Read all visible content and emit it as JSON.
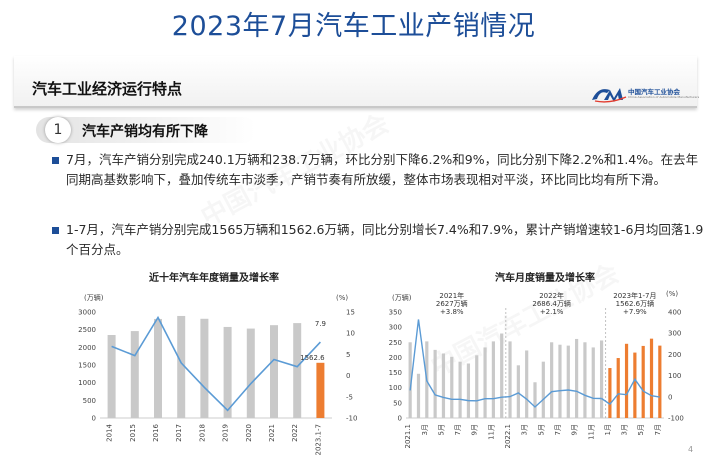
{
  "page": {
    "title": "2023年7月汽车工业产销情况",
    "section_title": "汽车工业经济运行特点",
    "logo_text": "中国汽车工业协会",
    "logo_subtext": "China Association of Automobile Manufacturers",
    "watermark": "中国汽车工业协会",
    "page_number": "4"
  },
  "subsection": {
    "number": "1",
    "title": "汽车产销均有所下降"
  },
  "bullets": [
    {
      "text": "7月，汽车产销分别完成240.1万辆和238.7万辆，环比分别下降6.2%和9%，同比分别下降2.2%和1.4%。在去年同期高基数影响下，叠加传统车市淡季，产销节奏有所放缓，整体市场表现相对平淡，环比同比均有所下滑。"
    },
    {
      "text": "1-7月，汽车产销分别完成1565万辆和1562.6万辆，同比分别增长7.4%和7.9%，累计产销增速较1-6月均回落1.9个百分点。"
    }
  ],
  "colors": {
    "accent": "#1d4e98",
    "bar_grey": "#c9c9c9",
    "bar_orange": "#ed7d31",
    "line_blue": "#5b9bd5"
  },
  "chart_data": [
    {
      "type": "bar",
      "title": "近十年汽车年度销量及增长率",
      "left_unit": "(万辆)",
      "right_unit": "(%)",
      "categories": [
        "2014",
        "2015",
        "2016",
        "2017",
        "2018",
        "2019",
        "2020",
        "2021",
        "2022",
        "2023.1-7"
      ],
      "series": [
        {
          "values": [
            2349,
            2460,
            2803,
            2888,
            2808,
            2577,
            2531,
            2627,
            2686,
            1562.6
          ]
        },
        {
          "values": [
            6.9,
            4.7,
            13.7,
            3.0,
            -2.8,
            -8.2,
            -1.9,
            3.8,
            2.1,
            7.9
          ]
        }
      ],
      "ylim_left": [
        0,
        3000
      ],
      "ylim_right": [
        -10,
        15
      ],
      "left_ticks": [
        "0",
        "500",
        "1000",
        "1500",
        "2000",
        "2500",
        "3000"
      ],
      "right_ticks": [
        "-10",
        "-5",
        "0",
        "5",
        "10",
        "15"
      ],
      "data_labels": [
        "7.9",
        "1562.6"
      ],
      "highlight_last": true
    },
    {
      "type": "bar",
      "title": "汽车月度销量及增长率",
      "left_unit": "(万辆)",
      "right_unit": "(%)",
      "categories": [
        "2021.1",
        "2月",
        "3月",
        "4月",
        "5月",
        "6月",
        "7月",
        "8月",
        "9月",
        "10月",
        "11月",
        "12月",
        "2022.1",
        "2月",
        "3月",
        "4月",
        "5月",
        "6月",
        "7月",
        "8月",
        "9月",
        "10月",
        "11月",
        "12月",
        "1月",
        "2月",
        "3月",
        "4月",
        "5月",
        "6月",
        "7月"
      ],
      "x_tick_labels": [
        "2021.1",
        "3月",
        "5月",
        "7月",
        "9月",
        "11月",
        "2022.1",
        "3月",
        "5月",
        "7月",
        "9月",
        "11月",
        "1月",
        "3月",
        "5月",
        "7月"
      ],
      "series": [
        {
          "values": [
            250,
            146,
            253,
            225,
            213,
            202,
            186,
            180,
            207,
            233,
            253,
            279,
            253,
            174,
            223,
            118,
            186,
            250,
            242,
            239,
            261,
            250,
            233,
            256,
            165,
            198,
            245,
            216,
            238,
            262,
            239
          ]
        },
        {
          "values": [
            30,
            365,
            75,
            9,
            -3,
            -12,
            -12,
            -18,
            -19,
            -9,
            -9,
            -2,
            1,
            18,
            -11,
            -48,
            -12,
            24,
            29,
            32,
            26,
            7,
            -7,
            -8,
            -35,
            14,
            10,
            83,
            27,
            5,
            -1
          ]
        }
      ],
      "ylim_left": [
        0,
        350
      ],
      "ylim_right": [
        -100,
        400
      ],
      "left_ticks": [
        "0",
        "50",
        "100",
        "150",
        "200",
        "250",
        "300",
        "350"
      ],
      "right_ticks": [
        "-100",
        "0",
        "100",
        "200",
        "300",
        "400"
      ],
      "annotations": [
        {
          "lines": [
            "2021年",
            "2627万辆",
            "+3.8%"
          ]
        },
        {
          "lines": [
            "2022年",
            "2686.4万辆",
            "+2.1%"
          ]
        },
        {
          "lines": [
            "2023年1-7月",
            "1562.6万辆",
            "+7.9%"
          ]
        }
      ]
    }
  ]
}
